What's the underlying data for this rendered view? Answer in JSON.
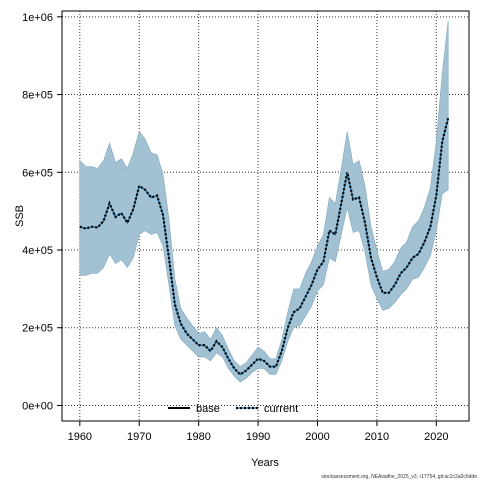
{
  "chart_data": {
    "type": "line",
    "xlabel": "Years",
    "ylabel": "SSB",
    "xlim": [
      1957,
      2025.5
    ],
    "ylim": [
      -40000,
      1015000
    ],
    "grid": true,
    "x_ticks": [
      1960,
      1970,
      1980,
      1990,
      2000,
      2010,
      2020
    ],
    "y_ticks": [
      {
        "value": 0,
        "label": "0e+00"
      },
      {
        "value": 200000,
        "label": "2e+05"
      },
      {
        "value": 400000,
        "label": "4e+05"
      },
      {
        "value": 600000,
        "label": "6e+05"
      },
      {
        "value": 800000,
        "label": "8e+05"
      },
      {
        "value": 1000000,
        "label": "1e+06"
      }
    ],
    "legend": {
      "position": "bottom-center",
      "entries": [
        {
          "label": "base",
          "color": "#000000",
          "style": "solid"
        },
        {
          "label": "current",
          "color": "#005b8f",
          "style": "dotted"
        }
      ]
    },
    "band_color": "#a2c2d3",
    "years": [
      1960,
      1961,
      1962,
      1963,
      1964,
      1965,
      1966,
      1967,
      1968,
      1969,
      1970,
      1971,
      1972,
      1973,
      1974,
      1975,
      1976,
      1977,
      1978,
      1979,
      1980,
      1981,
      1982,
      1983,
      1984,
      1985,
      1986,
      1987,
      1988,
      1989,
      1990,
      1991,
      1992,
      1993,
      1994,
      1995,
      1996,
      1997,
      1998,
      1999,
      2000,
      2001,
      2002,
      2003,
      2004,
      2005,
      2006,
      2007,
      2008,
      2009,
      2010,
      2011,
      2012,
      2013,
      2014,
      2015,
      2016,
      2017,
      2018,
      2019,
      2020,
      2021,
      2022
    ],
    "series": [
      {
        "name": "current",
        "values": [
          460000,
          455000,
          460000,
          458000,
          475000,
          520000,
          485000,
          495000,
          470000,
          505000,
          565000,
          555000,
          535000,
          540000,
          490000,
          380000,
          260000,
          210000,
          185000,
          170000,
          155000,
          155000,
          140000,
          165000,
          150000,
          120000,
          95000,
          80000,
          90000,
          105000,
          120000,
          115000,
          100000,
          100000,
          140000,
          200000,
          240000,
          250000,
          280000,
          310000,
          350000,
          370000,
          450000,
          440000,
          520000,
          600000,
          530000,
          535000,
          470000,
          380000,
          330000,
          290000,
          290000,
          310000,
          340000,
          355000,
          380000,
          390000,
          420000,
          460000,
          540000,
          680000,
          740000
        ]
      },
      {
        "name": "upper",
        "values": [
          630000,
          615000,
          615000,
          610000,
          630000,
          675000,
          625000,
          635000,
          610000,
          650000,
          705000,
          685000,
          650000,
          645000,
          595000,
          480000,
          325000,
          250000,
          225000,
          205000,
          185000,
          190000,
          170000,
          200000,
          180000,
          145000,
          115000,
          100000,
          110000,
          130000,
          150000,
          140000,
          120000,
          120000,
          170000,
          240000,
          300000,
          300000,
          340000,
          370000,
          410000,
          440000,
          535000,
          520000,
          610000,
          705000,
          620000,
          630000,
          565000,
          460000,
          400000,
          345000,
          350000,
          370000,
          405000,
          420000,
          460000,
          475000,
          510000,
          560000,
          680000,
          855000,
          990000
        ]
      },
      {
        "name": "lower",
        "values": [
          335000,
          335000,
          340000,
          340000,
          355000,
          390000,
          365000,
          375000,
          355000,
          380000,
          440000,
          450000,
          440000,
          445000,
          410000,
          310000,
          205000,
          170000,
          155000,
          140000,
          125000,
          125000,
          115000,
          135000,
          125000,
          95000,
          75000,
          60000,
          70000,
          85000,
          95000,
          95000,
          80000,
          80000,
          115000,
          165000,
          200000,
          205000,
          230000,
          255000,
          295000,
          310000,
          380000,
          370000,
          440000,
          510000,
          445000,
          450000,
          395000,
          310000,
          275000,
          245000,
          250000,
          265000,
          285000,
          300000,
          325000,
          330000,
          355000,
          385000,
          450000,
          545000,
          555000
        ]
      }
    ]
  },
  "footer_note": "stockassessment.org, NEAsaithe_2025_v3, r17754, git:ac2c2a0c6dde"
}
